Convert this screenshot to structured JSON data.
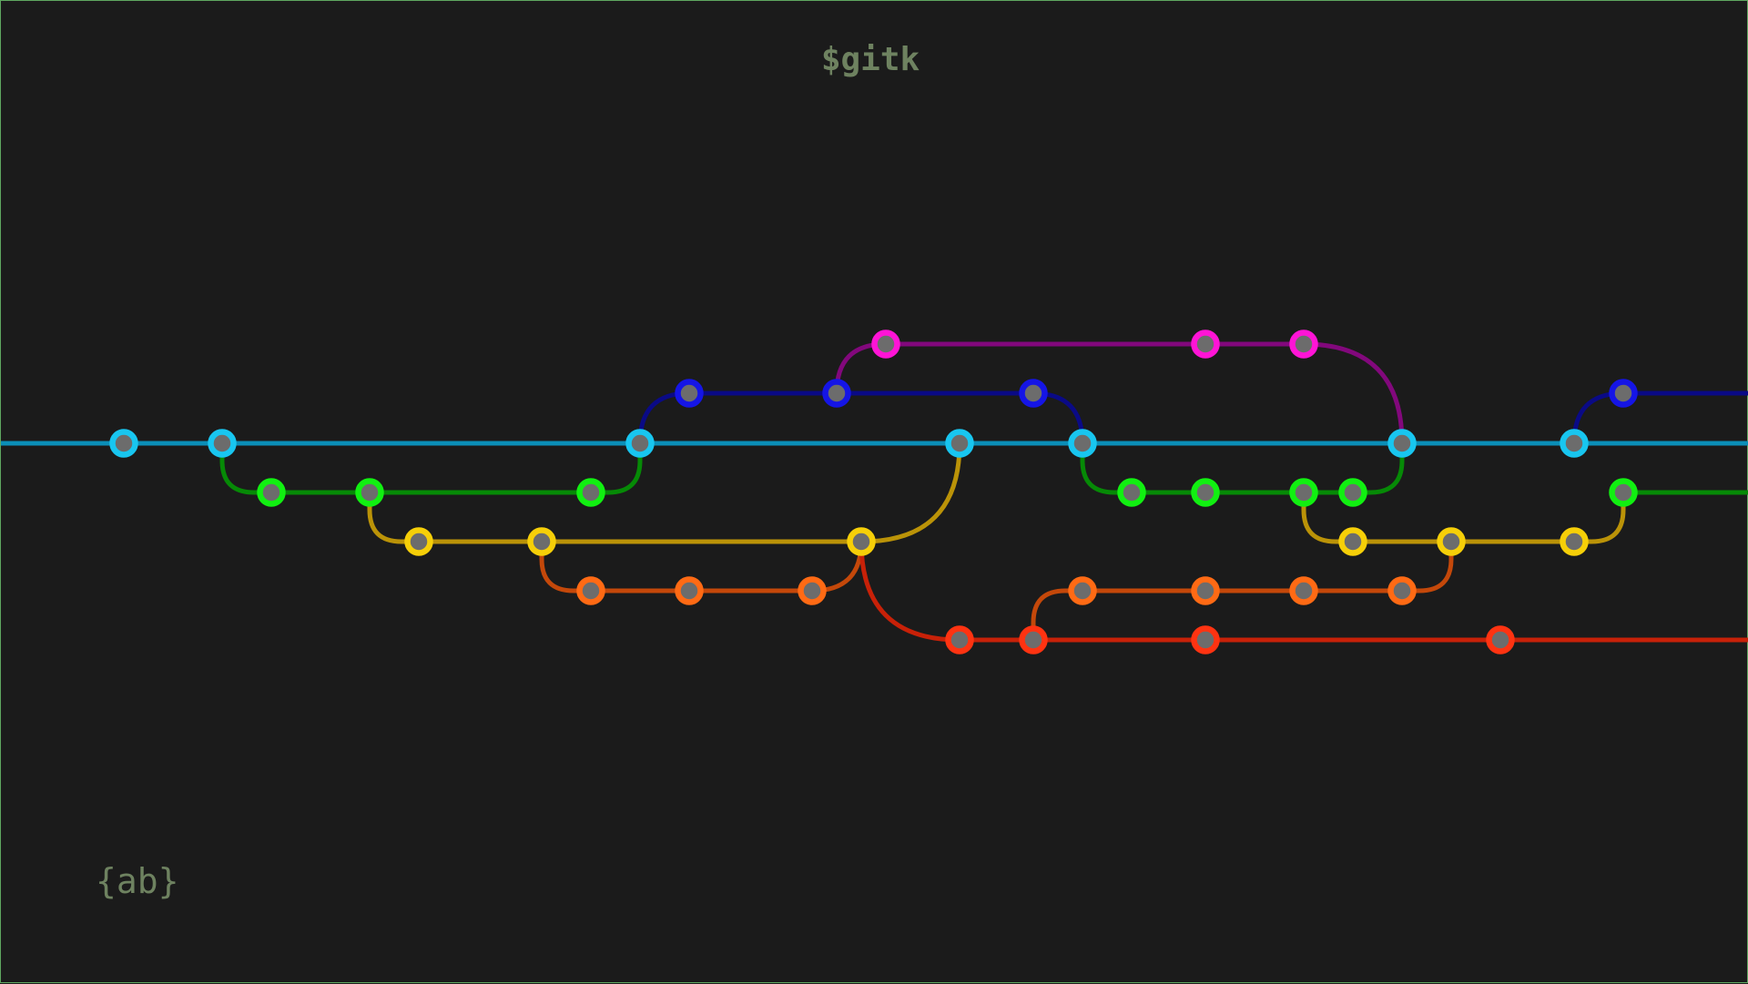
{
  "header": {
    "title": "$gitk"
  },
  "footer": {
    "logo_text": "{ab}"
  },
  "branches": [
    {
      "id": "cyan",
      "line": "#0b8fb8",
      "node": "#18c6f0"
    },
    {
      "id": "green",
      "line": "#068a06",
      "node": "#11f011"
    },
    {
      "id": "yellow",
      "line": "#bb9308",
      "node": "#f6cf08"
    },
    {
      "id": "orange",
      "line": "#c4480a",
      "node": "#ff6a14"
    },
    {
      "id": "red",
      "line": "#c82108",
      "node": "#ff3311"
    },
    {
      "id": "blue",
      "line": "#0a0a86",
      "node": "#1515e6"
    },
    {
      "id": "pink",
      "line": "#82087c",
      "node": "#ff14d6"
    }
  ],
  "node_fill": "#6c6c6c"
}
